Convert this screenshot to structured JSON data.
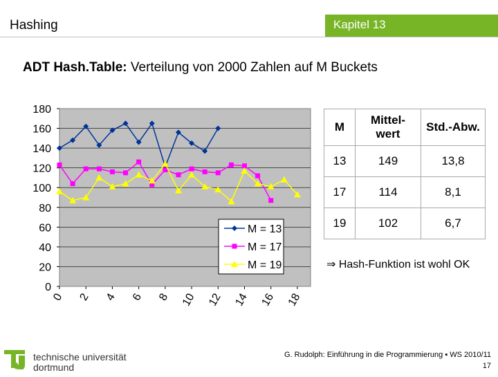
{
  "header": {
    "title": "Hashing",
    "chapter": "Kapitel 13"
  },
  "subtitle": {
    "bold": "ADT Hash.Table:",
    "rest": " Verteilung von 2000 Zahlen auf M Buckets"
  },
  "colors": {
    "accent": "#77b527",
    "m13": "#003399",
    "m17": "#ff00ff",
    "m19": "#ffff00",
    "plot_bg": "#c0c0c0"
  },
  "chart_data": {
    "type": "line",
    "title": "",
    "xlabel": "",
    "ylabel": "",
    "xlim": [
      0,
      19
    ],
    "ylim": [
      0,
      180
    ],
    "yticks": [
      0,
      20,
      40,
      60,
      80,
      100,
      120,
      140,
      160,
      180
    ],
    "xticks": [
      0,
      2,
      4,
      6,
      8,
      10,
      12,
      14,
      16,
      18
    ],
    "legend_position": "bottom-right",
    "series": [
      {
        "name": "M = 13",
        "color": "#003399",
        "marker": "diamond",
        "x": [
          0,
          1,
          2,
          3,
          4,
          5,
          6,
          7,
          8,
          9,
          10,
          11,
          12
        ],
        "values": [
          140,
          148,
          162,
          143,
          158,
          165,
          146,
          165,
          121,
          156,
          145,
          137,
          160
        ]
      },
      {
        "name": "M = 17",
        "color": "#ff00ff",
        "marker": "square",
        "x": [
          0,
          1,
          2,
          3,
          4,
          5,
          6,
          7,
          8,
          9,
          10,
          11,
          12,
          13,
          14,
          15,
          16
        ],
        "values": [
          123,
          104,
          119,
          119,
          116,
          115,
          126,
          103,
          118,
          113,
          119,
          116,
          115,
          123,
          122,
          112,
          87
        ]
      },
      {
        "name": "M = 19",
        "color": "#ffff00",
        "marker": "triangle",
        "x": [
          0,
          1,
          2,
          3,
          4,
          5,
          6,
          7,
          8,
          9,
          10,
          11,
          12,
          13,
          14,
          15,
          16,
          17,
          18
        ],
        "values": [
          96,
          87,
          90,
          110,
          101,
          104,
          113,
          107,
          124,
          97,
          113,
          101,
          98,
          86,
          117,
          104,
          101,
          108,
          93
        ]
      }
    ]
  },
  "table": {
    "headers": [
      "M",
      "Mittel-\nwert",
      "Std.-Abw."
    ],
    "rows": [
      [
        "13",
        "149",
        "13,8"
      ],
      [
        "17",
        "114",
        "8,1"
      ],
      [
        "19",
        "102",
        "6,7"
      ]
    ]
  },
  "conclusion": "⇒ Hash-Funktion ist wohl OK",
  "logo": {
    "line1": "technische universität",
    "line2": "dortmund",
    "mark": "tu"
  },
  "footer": {
    "line1": "G. Rudolph: Einführung in die Programmierung ▪ WS 2010/11",
    "page": "17"
  }
}
